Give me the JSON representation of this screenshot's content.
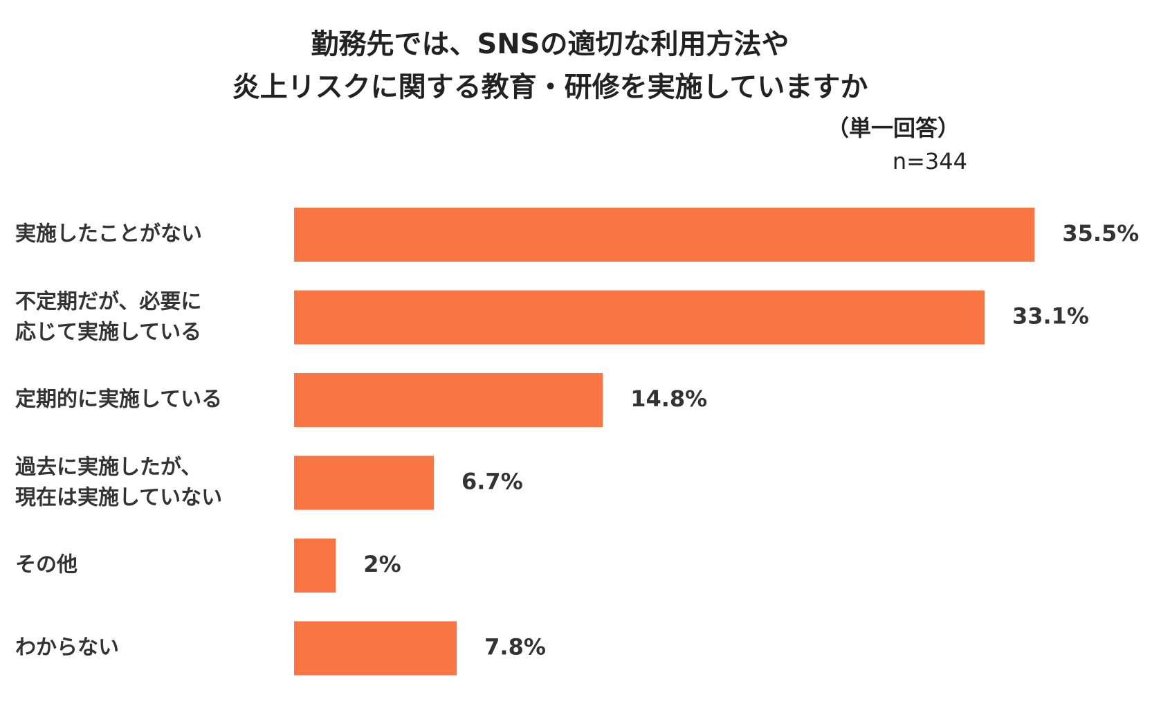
{
  "chart_data": {
    "type": "bar",
    "orientation": "horizontal",
    "title": "勤務先では、SNSの適切な利用方法や\n炎上リスクに関する教育・研修を実施していますか",
    "subtitle": "（単一回答）",
    "note": "n=344",
    "categories": [
      "実施したことがない",
      "不定期だが、必要に\n応じて実施している",
      "定期的に実施している",
      "過去に実施したが、\n現在は実施していない",
      "その他",
      "わからない"
    ],
    "values": [
      35.5,
      33.1,
      14.8,
      6.7,
      2,
      7.8
    ],
    "value_labels": [
      "35.5%",
      "33.1%",
      "14.8%",
      "6.7%",
      "2%",
      "7.8%"
    ],
    "color": "#f97543",
    "xlim": [
      0,
      40
    ]
  }
}
